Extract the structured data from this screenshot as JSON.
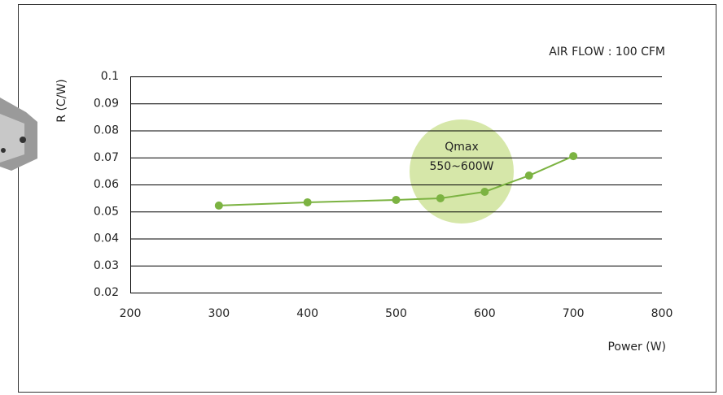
{
  "chart_data": {
    "type": "line",
    "title": "AIR FLOW : 100 CFM",
    "x_label": "Power (W)",
    "y_label": "R (C/W)",
    "annotation": [
      "Qmax",
      "550~600W"
    ],
    "x": [
      300,
      400,
      500,
      550,
      600,
      650,
      700
    ],
    "series": [
      {
        "color": "#7cb342",
        "values": [
          0.0522,
          0.0534,
          0.0543,
          0.0549,
          0.0573,
          0.0633,
          0.0705
        ]
      }
    ],
    "xlim": [
      200,
      800
    ],
    "xticks": [
      200,
      300,
      400,
      500,
      600,
      700,
      800
    ],
    "ylim": [
      0.02,
      0.1
    ],
    "yticks": [
      0.02,
      0.03,
      0.04,
      0.05,
      0.06,
      0.07,
      0.08,
      0.09,
      0.1
    ],
    "grid": true
  }
}
